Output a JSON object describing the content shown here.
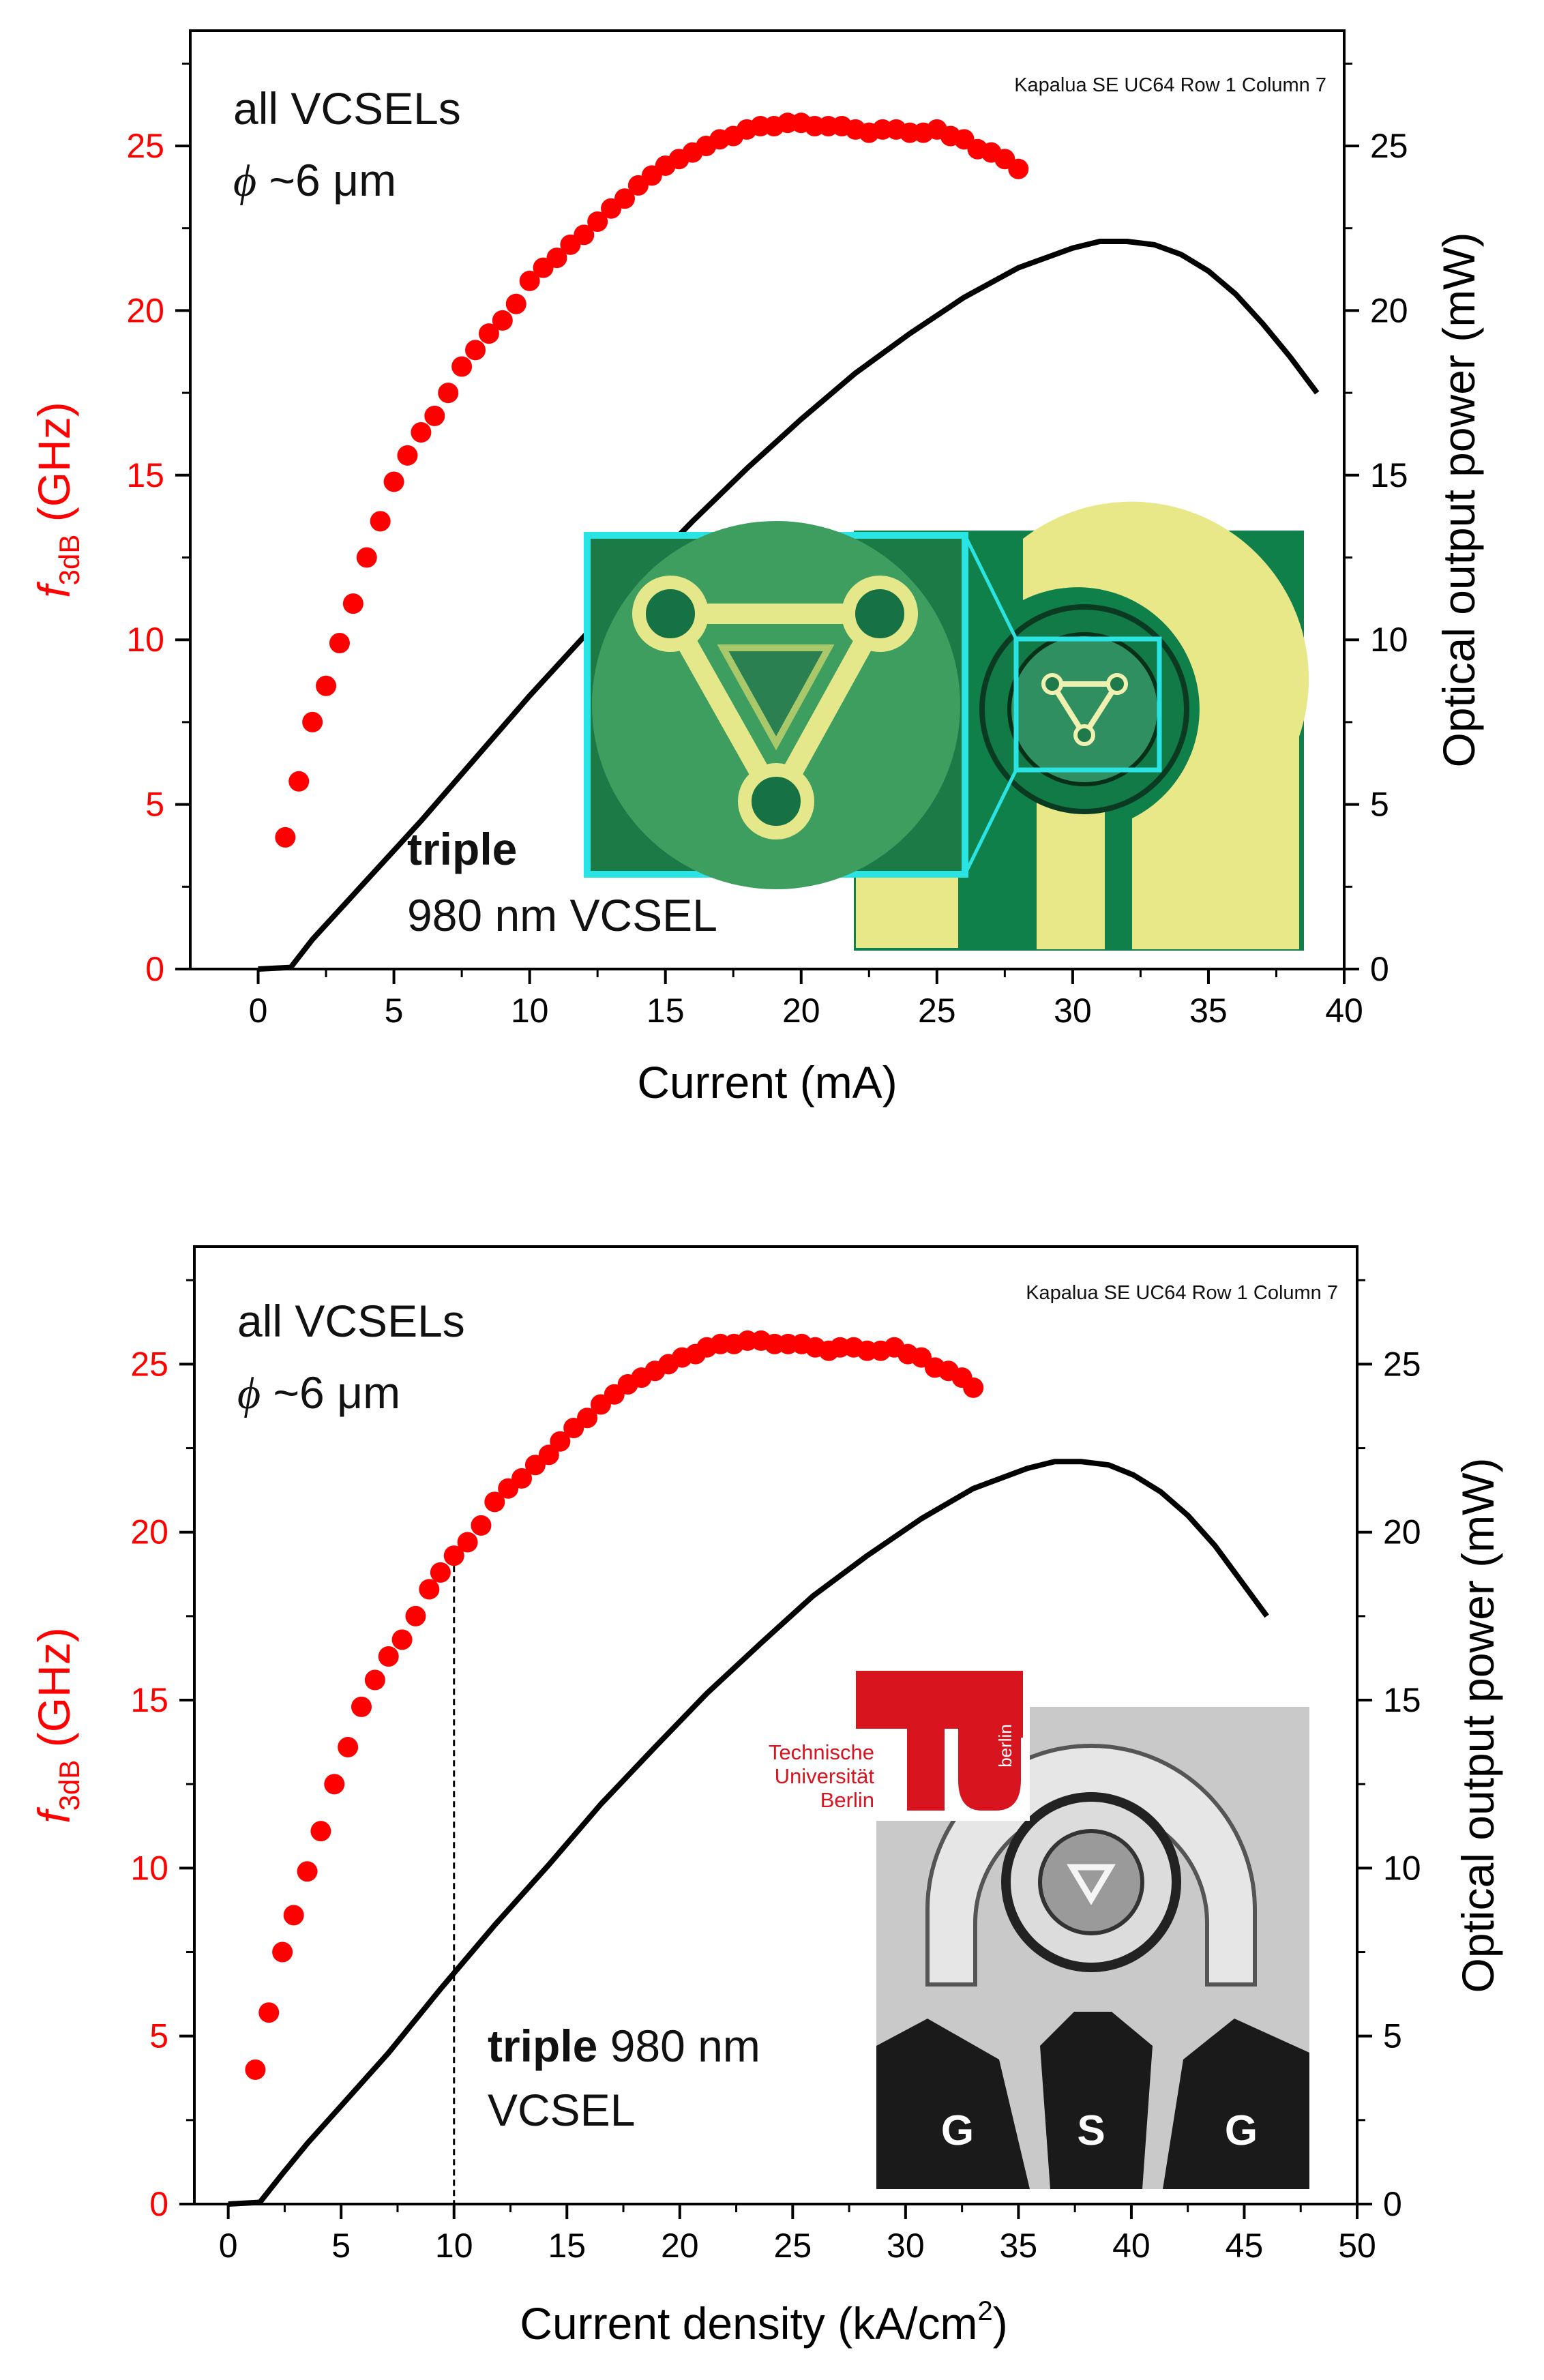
{
  "chart_data": [
    {
      "type": "scatter+line",
      "caption": "Kapalua SE UC64 Row 1 Column 7",
      "notes": {
        "line1": "all VCSELs",
        "line2_symbol": "ϕ",
        "line2_rest": " ~6 μm",
        "device_bold": "triple",
        "device_rest": "980 nm VCSEL"
      },
      "xlabel": "Current (mA)",
      "ylabel_left_main": "f",
      "ylabel_left_sub": "3dB",
      "ylabel_left_rest": " (GHz)",
      "ylabel_right": "Optical output power (mW)",
      "xlim": [
        -2.5,
        40
      ],
      "ylim_left": [
        0,
        28.5
      ],
      "ylim_right": [
        0,
        28.5
      ],
      "xticks": [
        0,
        5,
        10,
        15,
        20,
        25,
        30,
        35,
        40
      ],
      "yticks_left": [
        0,
        5,
        10,
        15,
        20,
        25
      ],
      "yticks_right": [
        0,
        5,
        10,
        15,
        20,
        25
      ],
      "colors": {
        "f3db": "#ff0000",
        "power": "#000000",
        "axes": "#000000"
      },
      "series": [
        {
          "name": "f3dB",
          "style": "markers",
          "x": [
            1.0,
            1.5,
            2.0,
            2.5,
            3.0,
            3.5,
            4.0,
            4.5,
            5.0,
            5.5,
            6.0,
            6.5,
            7.0,
            7.5,
            8.0,
            8.5,
            9.0,
            9.5,
            10.0,
            10.5,
            11.0,
            11.5,
            12.0,
            12.5,
            13.0,
            13.5,
            14.0,
            14.5,
            15.0,
            15.5,
            16.0,
            16.5,
            17.0,
            17.5,
            18.0,
            18.5,
            19.0,
            19.5,
            20.0,
            20.5,
            21.0,
            21.5,
            22.0,
            22.5,
            23.0,
            23.5,
            24.0,
            24.5,
            25.0,
            25.5,
            26.0,
            26.5,
            27.0,
            27.5,
            28.0
          ],
          "y": [
            4.0,
            5.7,
            7.5,
            8.6,
            9.9,
            11.1,
            12.5,
            13.6,
            14.8,
            15.6,
            16.3,
            16.8,
            17.5,
            18.3,
            18.8,
            19.3,
            19.7,
            20.2,
            20.9,
            21.3,
            21.6,
            22.0,
            22.3,
            22.7,
            23.1,
            23.4,
            23.8,
            24.1,
            24.4,
            24.6,
            24.8,
            25.0,
            25.2,
            25.3,
            25.5,
            25.6,
            25.6,
            25.7,
            25.7,
            25.6,
            25.6,
            25.6,
            25.5,
            25.4,
            25.5,
            25.5,
            25.4,
            25.4,
            25.5,
            25.3,
            25.2,
            24.9,
            24.8,
            24.6,
            24.3
          ]
        },
        {
          "name": "Optical output power",
          "style": "line",
          "x": [
            0,
            1.2,
            2,
            3,
            4,
            5,
            6,
            8,
            10,
            12,
            14,
            16,
            18,
            20,
            22,
            24,
            26,
            28,
            30,
            31,
            32,
            33,
            34,
            35,
            36,
            37,
            38,
            39
          ],
          "y": [
            0,
            0.05,
            0.9,
            1.8,
            2.7,
            3.6,
            4.5,
            6.4,
            8.3,
            10.1,
            11.9,
            13.6,
            15.2,
            16.7,
            18.1,
            19.3,
            20.4,
            21.3,
            21.9,
            22.1,
            22.1,
            22.0,
            21.7,
            21.2,
            20.5,
            19.6,
            18.6,
            17.5
          ]
        }
      ]
    },
    {
      "type": "scatter+line",
      "caption": "Kapalua SE UC64 Row 1 Column 7",
      "notes": {
        "line1": "all VCSELs",
        "line2_symbol": "ϕ",
        "line2_rest": " ~6 μm",
        "device_bold": "triple",
        "device_rest": " 980 nm",
        "device_line2": "VCSEL"
      },
      "logo_text": [
        "Technische",
        "Universität",
        "Berlin"
      ],
      "logo_side": "berlin",
      "probe_labels": [
        "G",
        "S",
        "G"
      ],
      "xlabel_main": "Current density (kA/cm",
      "xlabel_sup": "2",
      "xlabel_end": ")",
      "ylabel_left_main": "f",
      "ylabel_left_sub": "3dB",
      "ylabel_left_rest": " (GHz)",
      "ylabel_right": "Optical output power (mW)",
      "xlim": [
        -1.5,
        50
      ],
      "ylim_left": [
        0,
        28.5
      ],
      "ylim_right": [
        0,
        28.5
      ],
      "xticks": [
        0,
        5,
        10,
        15,
        20,
        25,
        30,
        35,
        40,
        45,
        50
      ],
      "yticks_left": [
        0,
        5,
        10,
        15,
        20,
        25
      ],
      "yticks_right": [
        0,
        5,
        10,
        15,
        20,
        25
      ],
      "vline_x": 10,
      "colors": {
        "f3db": "#ff0000",
        "power": "#000000",
        "axes": "#000000"
      },
      "series": [
        {
          "name": "f3dB",
          "style": "markers",
          "x": [
            1.2,
            1.8,
            2.4,
            2.9,
            3.5,
            4.1,
            4.7,
            5.3,
            5.9,
            6.5,
            7.1,
            7.7,
            8.3,
            8.9,
            9.4,
            10.0,
            10.6,
            11.2,
            11.8,
            12.4,
            13.0,
            13.6,
            14.2,
            14.7,
            15.3,
            15.9,
            16.5,
            17.1,
            17.7,
            18.3,
            18.9,
            19.5,
            20.1,
            20.7,
            21.2,
            21.8,
            22.4,
            23.0,
            23.6,
            24.2,
            24.8,
            25.4,
            26.0,
            26.6,
            27.1,
            27.7,
            28.3,
            28.9,
            29.5,
            30.1,
            30.7,
            31.3,
            31.9,
            32.5,
            33.0
          ],
          "y": [
            4.0,
            5.7,
            7.5,
            8.6,
            9.9,
            11.1,
            12.5,
            13.6,
            14.8,
            15.6,
            16.3,
            16.8,
            17.5,
            18.3,
            18.8,
            19.3,
            19.7,
            20.2,
            20.9,
            21.3,
            21.6,
            22.0,
            22.3,
            22.7,
            23.1,
            23.4,
            23.8,
            24.1,
            24.4,
            24.6,
            24.8,
            25.0,
            25.2,
            25.3,
            25.5,
            25.6,
            25.6,
            25.7,
            25.7,
            25.6,
            25.6,
            25.6,
            25.5,
            25.4,
            25.5,
            25.5,
            25.4,
            25.4,
            25.5,
            25.3,
            25.2,
            24.9,
            24.8,
            24.6,
            24.3
          ]
        },
        {
          "name": "Optical output power",
          "style": "line",
          "x": [
            0,
            1.4,
            2.4,
            3.5,
            4.7,
            5.9,
            7.1,
            9.4,
            11.8,
            14.2,
            16.5,
            18.9,
            21.2,
            23.6,
            25.9,
            28.3,
            30.7,
            33.0,
            35.4,
            36.6,
            37.8,
            39.0,
            40.1,
            41.3,
            42.5,
            43.7,
            44.8,
            46.0
          ],
          "y": [
            0,
            0.05,
            0.9,
            1.8,
            2.7,
            3.6,
            4.5,
            6.4,
            8.3,
            10.1,
            11.9,
            13.6,
            15.2,
            16.7,
            18.1,
            19.3,
            20.4,
            21.3,
            21.9,
            22.1,
            22.1,
            22.0,
            21.7,
            21.2,
            20.5,
            19.6,
            18.6,
            17.5
          ]
        }
      ]
    }
  ]
}
